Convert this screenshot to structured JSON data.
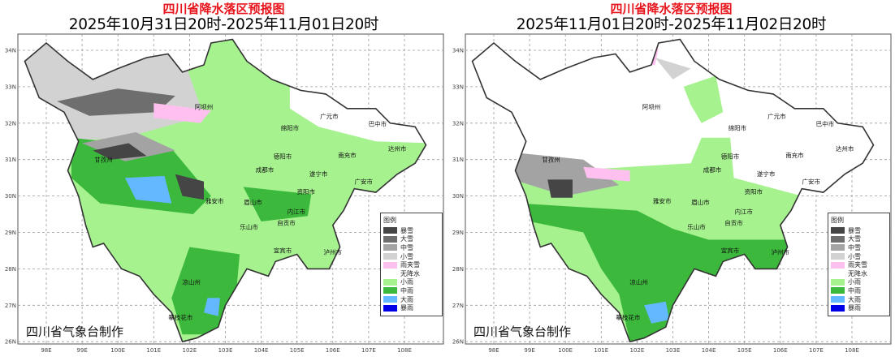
{
  "colors": {
    "暴雪": "#454545",
    "大雪": "#6e6e6e",
    "中雪": "#a3a3a3",
    "小雪": "#d2d2d2",
    "雨夹雪": "#ffc0ef",
    "无降水": "#ffffff",
    "小雨": "#a6f28f",
    "中雨": "#3cb93c",
    "大雨": "#63b8ff",
    "暴雨": "#0000e6"
  },
  "legend": {
    "title": "图例",
    "items": [
      "暴雪",
      "大雪",
      "中雪",
      "小雪",
      "雨夹雪",
      "无降水",
      "小雨",
      "中雨",
      "大雨",
      "暴雨"
    ]
  },
  "credit": "四川省气象台制作",
  "lon_ticks": [
    "98E",
    "99E",
    "100E",
    "101E",
    "102E",
    "103E",
    "104E",
    "105E",
    "106E",
    "107E",
    "108E"
  ],
  "lat_ticks": [
    "34N",
    "33N",
    "32N",
    "31N",
    "30N",
    "29N",
    "28N",
    "27N",
    "26N"
  ],
  "cities": [
    {
      "name": "阿坝州",
      "lon": 102.4,
      "lat": 32.45
    },
    {
      "name": "甘孜州",
      "lon": 99.6,
      "lat": 31.0
    },
    {
      "name": "广元市",
      "lon": 105.9,
      "lat": 32.2
    },
    {
      "name": "巴中市",
      "lon": 107.25,
      "lat": 31.98
    },
    {
      "name": "绵阳市",
      "lon": 104.8,
      "lat": 31.87
    },
    {
      "name": "德阳市",
      "lon": 104.6,
      "lat": 31.09
    },
    {
      "name": "南充市",
      "lon": 106.4,
      "lat": 31.13
    },
    {
      "name": "达州市",
      "lon": 107.8,
      "lat": 31.31
    },
    {
      "name": "成都市",
      "lon": 104.1,
      "lat": 30.73
    },
    {
      "name": "遂宁市",
      "lon": 105.6,
      "lat": 30.62
    },
    {
      "name": "广安市",
      "lon": 106.86,
      "lat": 30.4
    },
    {
      "name": "资阳市",
      "lon": 105.25,
      "lat": 30.13
    },
    {
      "name": "雅安市",
      "lon": 102.7,
      "lat": 29.87
    },
    {
      "name": "眉山市",
      "lon": 103.77,
      "lat": 29.84
    },
    {
      "name": "内江市",
      "lon": 104.98,
      "lat": 29.58
    },
    {
      "name": "乐山市",
      "lon": 103.66,
      "lat": 29.16
    },
    {
      "name": "自贡市",
      "lon": 104.7,
      "lat": 29.27
    },
    {
      "name": "宜宾市",
      "lon": 104.6,
      "lat": 28.51
    },
    {
      "name": "泸州市",
      "lon": 106.0,
      "lat": 28.47
    },
    {
      "name": "凉山州",
      "lon": 102.05,
      "lat": 27.64
    },
    {
      "name": "攀枝花市",
      "lon": 101.75,
      "lat": 26.67
    }
  ],
  "panels": [
    {
      "title": "四川省降水落区预报图",
      "subtitle": "2025年10月31日20时-2025年11月01日20时",
      "base": "小雨",
      "areas": [
        {
          "cat": "无降水",
          "poly": [
            [
              104.8,
              33.5
            ],
            [
              108.8,
              33.2
            ],
            [
              108.8,
              31.45
            ],
            [
              107.2,
              31.5
            ],
            [
              105.6,
              31.9
            ],
            [
              104.8,
              32.4
            ]
          ]
        },
        {
          "cat": "小雪",
          "poly": [
            [
              97.2,
              34.4
            ],
            [
              101.6,
              34.4
            ],
            [
              102.4,
              32.2
            ],
            [
              100.2,
              31.6
            ],
            [
              98.3,
              31.5
            ],
            [
              97.2,
              32.5
            ]
          ]
        },
        {
          "cat": "大雪",
          "poly": [
            [
              98.3,
              32.6
            ],
            [
              100.0,
              32.95
            ],
            [
              101.6,
              32.75
            ],
            [
              101.1,
              32.3
            ],
            [
              99.2,
              32.2
            ]
          ]
        },
        {
          "cat": "雨夹雪",
          "poly": [
            [
              101.0,
              32.55
            ],
            [
              102.6,
              32.35
            ],
            [
              102.3,
              32.0
            ],
            [
              101.0,
              32.15
            ]
          ]
        },
        {
          "cat": "中雨",
          "poly": [
            [
              98.7,
              31.6
            ],
            [
              101.5,
              31.3
            ],
            [
              102.6,
              30.0
            ],
            [
              102.1,
              29.5
            ],
            [
              99.5,
              29.8
            ],
            [
              98.7,
              30.5
            ]
          ]
        },
        {
          "cat": "中雨",
          "poly": [
            [
              103.5,
              30.25
            ],
            [
              105.4,
              30.05
            ],
            [
              105.3,
              29.45
            ],
            [
              104.0,
              29.3
            ]
          ]
        },
        {
          "cat": "中雨",
          "poly": [
            [
              102.0,
              28.6
            ],
            [
              103.4,
              28.4
            ],
            [
              103.2,
              26.2
            ],
            [
              101.8,
              26.2
            ],
            [
              101.5,
              27.2
            ]
          ]
        },
        {
          "cat": "中雪",
          "poly": [
            [
              99.0,
              31.45
            ],
            [
              100.5,
              31.75
            ],
            [
              101.6,
              31.25
            ],
            [
              100.2,
              30.95
            ]
          ]
        },
        {
          "cat": "暴雪",
          "poly": [
            [
              99.3,
              31.25
            ],
            [
              100.3,
              31.45
            ],
            [
              100.8,
              31.1
            ],
            [
              99.8,
              31.0
            ]
          ]
        },
        {
          "cat": "暴雪",
          "poly": [
            [
              101.6,
              30.6
            ],
            [
              102.4,
              30.4
            ],
            [
              102.4,
              29.9
            ],
            [
              101.8,
              30.0
            ]
          ]
        },
        {
          "cat": "大雨",
          "poly": [
            [
              100.2,
              30.5
            ],
            [
              101.3,
              30.55
            ],
            [
              101.5,
              29.8
            ],
            [
              100.5,
              29.9
            ]
          ]
        },
        {
          "cat": "大雨",
          "poly": [
            [
              102.5,
              27.2
            ],
            [
              102.85,
              27.2
            ],
            [
              102.8,
              26.7
            ],
            [
              102.4,
              26.8
            ]
          ]
        }
      ]
    },
    {
      "title": "四川省降水落区预报图",
      "subtitle": "2025年11月01日20时-2025年11月02日20时",
      "base": "无降水",
      "areas": [
        {
          "cat": "小雨",
          "poly": [
            [
              98.4,
              30.6
            ],
            [
              103.5,
              30.9
            ],
            [
              103.8,
              31.6
            ],
            [
              104.6,
              31.6
            ],
            [
              104.7,
              30.5
            ],
            [
              106.6,
              30.0
            ],
            [
              106.6,
              27.8
            ],
            [
              104.0,
              27.5
            ],
            [
              101.8,
              25.9
            ],
            [
              100.0,
              27.5
            ],
            [
              98.4,
              29.5
            ]
          ]
        },
        {
          "cat": "小雨",
          "poly": [
            [
              103.3,
              33.0
            ],
            [
              104.2,
              33.3
            ],
            [
              104.4,
              32.3
            ],
            [
              103.8,
              32.0
            ],
            [
              103.5,
              32.5
            ]
          ]
        },
        {
          "cat": "中雨",
          "poly": [
            [
              98.7,
              29.8
            ],
            [
              102.0,
              29.6
            ],
            [
              103.0,
              29.1
            ],
            [
              104.0,
              28.8
            ],
            [
              106.6,
              28.8
            ],
            [
              106.6,
              27.9
            ],
            [
              104.2,
              27.7
            ],
            [
              103.0,
              26.0
            ],
            [
              101.8,
              26.0
            ],
            [
              101.5,
              27.3
            ],
            [
              101.0,
              28.0
            ],
            [
              100.5,
              29.0
            ],
            [
              99.0,
              29.3
            ]
          ]
        },
        {
          "cat": "中雪",
          "poly": [
            [
              98.5,
              31.2
            ],
            [
              100.5,
              31.0
            ],
            [
              101.5,
              30.3
            ],
            [
              100.0,
              30.0
            ],
            [
              98.7,
              30.4
            ]
          ]
        },
        {
          "cat": "暴雪",
          "poly": [
            [
              99.5,
              30.45
            ],
            [
              100.2,
              30.45
            ],
            [
              100.2,
              29.95
            ],
            [
              99.6,
              29.95
            ]
          ]
        },
        {
          "cat": "雨夹雪",
          "poly": [
            [
              100.5,
              30.8
            ],
            [
              101.8,
              30.7
            ],
            [
              101.8,
              30.4
            ],
            [
              100.6,
              30.5
            ]
          ]
        },
        {
          "cat": "雨夹雪",
          "poly": [
            [
              101.6,
              34.05
            ],
            [
              102.6,
              34.05
            ],
            [
              102.5,
              33.6
            ],
            [
              101.8,
              33.6
            ]
          ]
        },
        {
          "cat": "小雪",
          "poly": [
            [
              102.5,
              33.8
            ],
            [
              103.5,
              33.5
            ],
            [
              103.0,
              33.2
            ]
          ]
        },
        {
          "cat": "大雨",
          "poly": [
            [
              102.2,
              27.0
            ],
            [
              102.8,
              27.1
            ],
            [
              102.9,
              26.6
            ],
            [
              102.4,
              26.5
            ]
          ]
        }
      ]
    }
  ]
}
